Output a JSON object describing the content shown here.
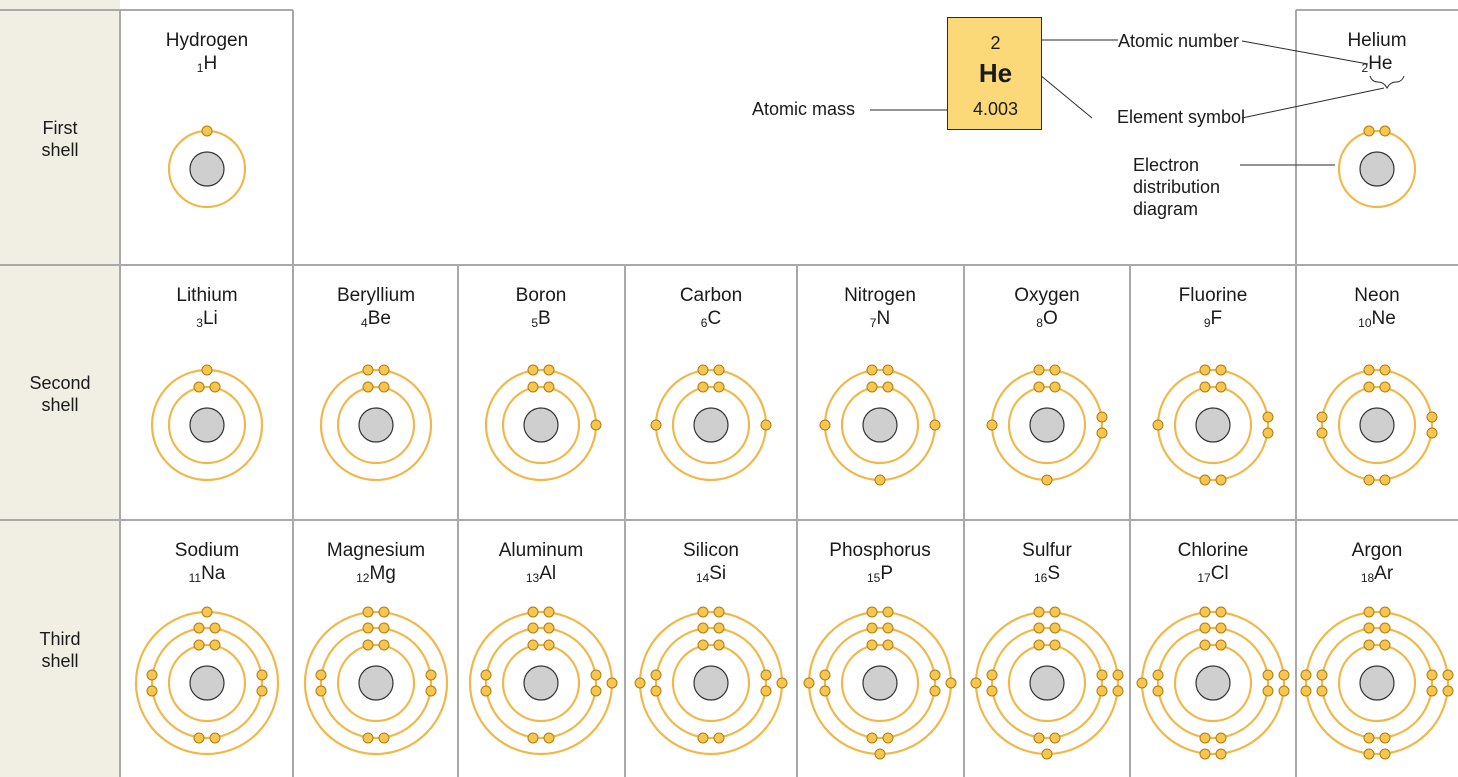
{
  "shells": [
    {
      "label_line1": "First",
      "label_line2": "shell"
    },
    {
      "label_line1": "Second",
      "label_line2": "shell"
    },
    {
      "label_line1": "Third",
      "label_line2": "shell"
    }
  ],
  "key": {
    "atomic_number": "2",
    "symbol": "He",
    "atomic_mass": "4.003",
    "labels": {
      "atomic_number": "Atomic number",
      "element_symbol": "Element symbol",
      "atomic_mass": "Atomic mass",
      "electron_line1": "Electron",
      "electron_line2": "distribution",
      "electron_line3": "diagram"
    }
  },
  "elements": [
    {
      "name": "Hydrogen",
      "number": "1",
      "symbol": "H",
      "electrons": [
        1
      ]
    },
    {
      "name": "Helium",
      "number": "2",
      "symbol": "He",
      "electrons": [
        2
      ]
    },
    {
      "name": "Lithium",
      "number": "3",
      "symbol": "Li",
      "electrons": [
        2,
        1
      ]
    },
    {
      "name": "Beryllium",
      "number": "4",
      "symbol": "Be",
      "electrons": [
        2,
        2
      ]
    },
    {
      "name": "Boron",
      "number": "5",
      "symbol": "B",
      "electrons": [
        2,
        3
      ]
    },
    {
      "name": "Carbon",
      "number": "6",
      "symbol": "C",
      "electrons": [
        2,
        4
      ]
    },
    {
      "name": "Nitrogen",
      "number": "7",
      "symbol": "N",
      "electrons": [
        2,
        5
      ]
    },
    {
      "name": "Oxygen",
      "number": "8",
      "symbol": "O",
      "electrons": [
        2,
        6
      ]
    },
    {
      "name": "Fluorine",
      "number": "9",
      "symbol": "F",
      "electrons": [
        2,
        7
      ]
    },
    {
      "name": "Neon",
      "number": "10",
      "symbol": "Ne",
      "electrons": [
        2,
        8
      ]
    },
    {
      "name": "Sodium",
      "number": "11",
      "symbol": "Na",
      "electrons": [
        2,
        8,
        1
      ]
    },
    {
      "name": "Magnesium",
      "number": "12",
      "symbol": "Mg",
      "electrons": [
        2,
        8,
        2
      ]
    },
    {
      "name": "Aluminum",
      "number": "13",
      "symbol": "Al",
      "electrons": [
        2,
        8,
        3
      ]
    },
    {
      "name": "Silicon",
      "number": "14",
      "symbol": "Si",
      "electrons": [
        2,
        8,
        4
      ]
    },
    {
      "name": "Phosphorus",
      "number": "15",
      "symbol": "P",
      "electrons": [
        2,
        8,
        5
      ]
    },
    {
      "name": "Sulfur",
      "number": "16",
      "symbol": "S",
      "electrons": [
        2,
        8,
        6
      ]
    },
    {
      "name": "Chlorine",
      "number": "17",
      "symbol": "Cl",
      "electrons": [
        2,
        8,
        7
      ]
    },
    {
      "name": "Argon",
      "number": "18",
      "symbol": "Ar",
      "electrons": [
        2,
        8,
        8
      ]
    }
  ],
  "colors": {
    "shell_ring": "#f0b84a",
    "electron_fill": "#f6c64f",
    "electron_stroke": "#b07a10",
    "nucleus_fill": "#cfcfcf",
    "nucleus_stroke": "#333333",
    "key_box": "#fbd978",
    "grid_line": "#a9a9a9",
    "shell_column": "#f1efe4"
  }
}
